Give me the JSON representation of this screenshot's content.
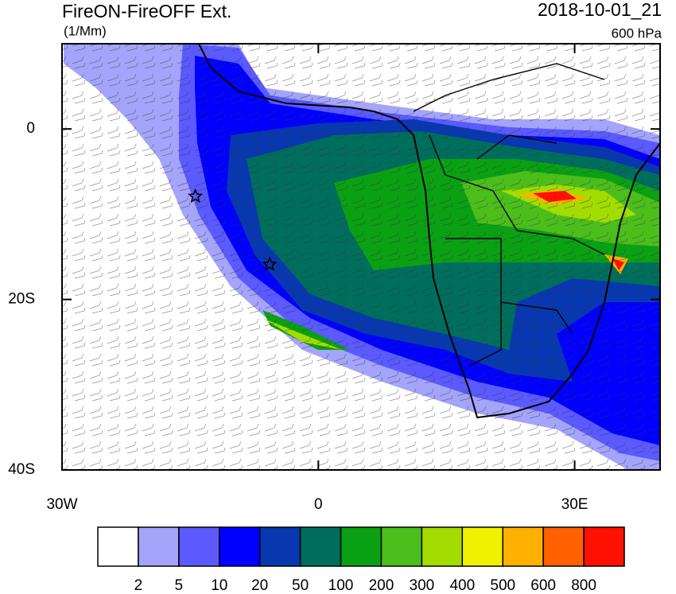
{
  "chart_data": {
    "type": "map",
    "title": "FireON-FireOFF Ext.",
    "units": "(1/Mm)",
    "date": "2018-10-01_21",
    "level": "600 hPa",
    "xlim": [
      -30,
      40
    ],
    "ylim": [
      -40,
      10
    ],
    "xticks": [
      {
        "value": -30,
        "label": "30W"
      },
      0,
      {
        "value": 30,
        "label": "30E"
      }
    ],
    "yticks": [
      0,
      {
        "value": -20,
        "label": "20S"
      },
      {
        "value": -40,
        "label": "40S"
      }
    ],
    "markers": [
      {
        "lon": -14.4,
        "lat": -7.9
      },
      {
        "lon": -5.7,
        "lat": -15.9
      }
    ],
    "colorbar": {
      "levels": [
        2,
        5,
        10,
        20,
        50,
        100,
        200,
        300,
        400,
        500,
        600,
        800
      ],
      "colors": [
        "#ffffff",
        "#a4a4fa",
        "#5a5aff",
        "#0000ff",
        "#0838b0",
        "#006e5c",
        "#0aa014",
        "#4cbe1c",
        "#a2dc00",
        "#f0f000",
        "#ffb000",
        "#ff6000",
        "#ff1000"
      ]
    }
  }
}
